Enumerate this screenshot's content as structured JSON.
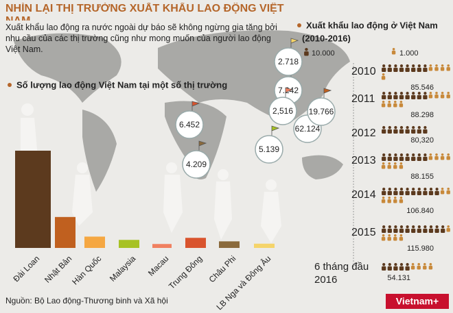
{
  "header": {
    "title": "NHÌN LẠI THỊ TRƯỜNG XUẤT KHẨU LAO ĐỘNG VIỆT NAM",
    "intro": "Xuất khẩu lao động ra nước ngoài dự báo sẽ không ngừng gia tăng bởi nhu cầu của các thị trường cũng như mong muốn của người lao động Việt Nam."
  },
  "chart_data": [
    {
      "type": "bar",
      "title": "Số lượng lao động Việt Nam tại một số thị trường",
      "categories": [
        "Đài Loan",
        "Nhật Bản",
        "Hàn Quốc",
        "Malaysia",
        "Macau",
        "Trung Đông",
        "Châu Phi",
        "LB Nga và Đông Âu"
      ],
      "values": [
        62124,
        19766,
        7242,
        5139,
        2516,
        6452,
        4209,
        2718
      ],
      "value_labels": [
        "62.124",
        "19.766",
        "7.242",
        "5.139",
        "2,516",
        "6.452",
        "4.209",
        "2.718"
      ],
      "colors": [
        "#5c3a1e",
        "#c0601f",
        "#f5a742",
        "#a7c224",
        "#f08060",
        "#d9542e",
        "#8a6a3c",
        "#f5d46a"
      ]
    },
    {
      "type": "pictogram",
      "title": "Xuất khẩu lao động ở Việt Nam",
      "subtitle": "(2010-2016)",
      "categories": [
        "2010",
        "2011",
        "2012",
        "2013",
        "2014",
        "2015",
        "6 tháng đầu 2016"
      ],
      "values": [
        85546,
        88298,
        80320,
        88155,
        106840,
        115980,
        54131
      ],
      "value_labels": [
        "85.546",
        "88.298",
        "80,320",
        "88.155",
        "106.840",
        "115.980",
        "54.131"
      ],
      "units": [
        {
          "value": 10000,
          "label": "10.000",
          "color": "#5c3a1e"
        },
        {
          "value": 1000,
          "label": "1.000",
          "color": "#c8893a"
        }
      ]
    }
  ],
  "footer": {
    "source": "Nguồn: Bộ Lao động-Thương binh và Xã hội",
    "logo": "Vietnam+"
  }
}
